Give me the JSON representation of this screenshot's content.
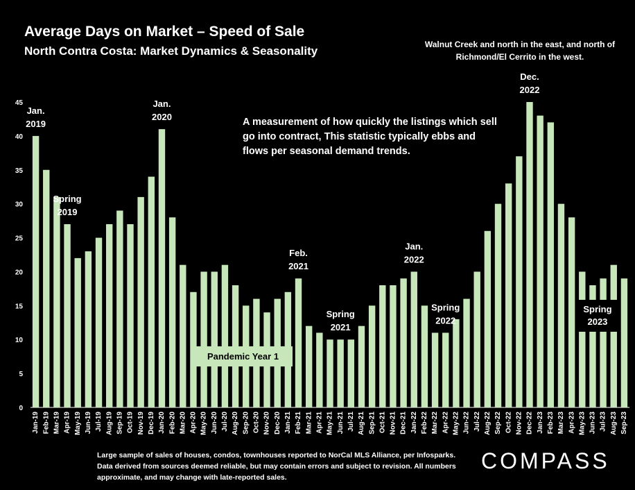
{
  "header": {
    "title": "Average Days on Market – Speed of Sale",
    "subtitle": "North Contra Costa: Market Dynamics & Seasonality",
    "region_note": "Walnut Creek and north in the east, and north of Richmond/El Cerrito in the west."
  },
  "description": "A measurement of how quickly the listings which sell go into contract, This statistic typically ebbs and flows per seasonal demand trends.",
  "footer": {
    "note": "Large sample of sales of houses, condos, townhouses reported to NorCal MLS Alliance, per Infosparks. Data derived from sources deemed reliable, but may contain errors and subject to revision. All numbers approximate, and may change with late-reported sales.",
    "logo": "COMPASS"
  },
  "colors": {
    "background": "#000000",
    "bar": "#c7e6ba",
    "text": "#ffffff",
    "box_fill": "#c7e6ba",
    "box_text_dark": "#000000"
  },
  "chart_data": {
    "type": "bar",
    "title": "Average Days on Market – Speed of Sale",
    "ylim": [
      0,
      45
    ],
    "yticks": [
      0,
      5,
      10,
      15,
      20,
      25,
      30,
      35,
      40,
      45
    ],
    "grid": false,
    "categories": [
      "Jan-19",
      "Feb-19",
      "Mar-19",
      "Apr-19",
      "May-19",
      "Jun-19",
      "Jul-19",
      "Aug-19",
      "Sep-19",
      "Oct-19",
      "Nov-19",
      "Dec-19",
      "Jan-20",
      "Feb-20",
      "Mar-20",
      "Apr-20",
      "May-20",
      "Jun-20",
      "Jul-20",
      "Aug-20",
      "Sep-20",
      "Oct-20",
      "Nov-20",
      "Dec-20",
      "Jan-21",
      "Feb-21",
      "Mar-21",
      "Apr-21",
      "May-21",
      "Jun-21",
      "Jul-21",
      "Aug-21",
      "Sep-21",
      "Oct-21",
      "Nov-21",
      "Dec-21",
      "Jan-22",
      "Feb-22",
      "Mar-22",
      "Apr-22",
      "May-22",
      "Jun-22",
      "Jul-22",
      "Aug-22",
      "Sep-22",
      "Oct-22",
      "Nov-22",
      "Dec-22",
      "Jan-23",
      "Feb-23",
      "Mar-23",
      "Apr-23",
      "May-23",
      "Jun-23",
      "Jul-23",
      "Aug-23",
      "Sep-23"
    ],
    "values": [
      40,
      35,
      31,
      27,
      22,
      23,
      25,
      27,
      29,
      27,
      31,
      34,
      41,
      28,
      21,
      17,
      20,
      20,
      21,
      18,
      15,
      16,
      14,
      16,
      17,
      19,
      12,
      11,
      10,
      10,
      10,
      12,
      15,
      18,
      18,
      19,
      20,
      15,
      11,
      11,
      13,
      16,
      20,
      26,
      30,
      33,
      37,
      45,
      43,
      42,
      30,
      28,
      20,
      18,
      19,
      21,
      19
    ],
    "annotations": [
      {
        "category": "Jan-19",
        "lines": [
          "Jan.",
          "2019"
        ],
        "style": "label"
      },
      {
        "category": "Apr-19",
        "lines": [
          "Spring",
          "2019"
        ],
        "style": "label"
      },
      {
        "category": "Jan-20",
        "lines": [
          "Jan.",
          "2020"
        ],
        "style": "label"
      },
      {
        "category": "Feb-21",
        "lines": [
          "Feb.",
          "2021"
        ],
        "style": "label"
      },
      {
        "category": "Jun-21",
        "lines": [
          "Spring",
          "2021"
        ],
        "style": "label"
      },
      {
        "category": "Jan-22",
        "lines": [
          "Jan.",
          "2022"
        ],
        "style": "label"
      },
      {
        "category": "Apr-22",
        "lines": [
          "Spring",
          "2022"
        ],
        "style": "label"
      },
      {
        "category": "Dec-22",
        "lines": [
          "Dec.",
          "2022"
        ],
        "style": "label"
      },
      {
        "category": "Jun-23",
        "lines": [
          "Spring",
          "2023"
        ],
        "style": "boxed-dark"
      },
      {
        "category": "Sep-20",
        "lines": [
          "Pandemic Year 1"
        ],
        "style": "boxed-light"
      }
    ]
  }
}
